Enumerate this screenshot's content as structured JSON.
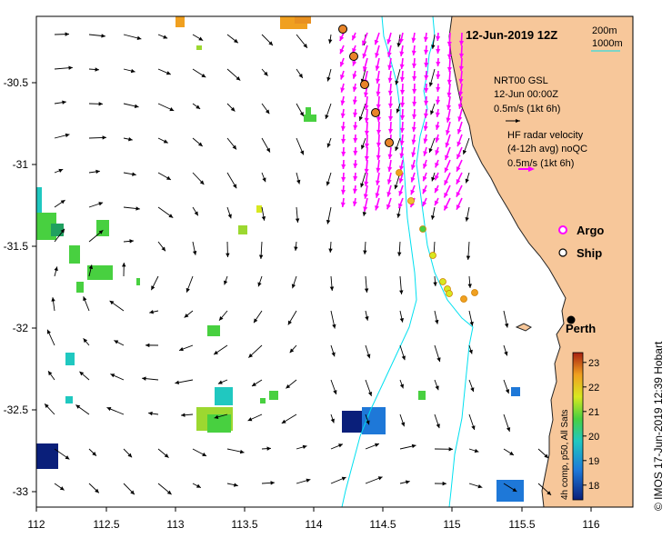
{
  "map": {
    "title": "12-Jun-2019 12Z",
    "depth_legend": {
      "contour_200": "200m",
      "contour_1000": "1000m"
    },
    "argo_label": "Argo",
    "ship_label": "Ship",
    "city_label": "Perth",
    "nrt_block": {
      "line1": "NRT00 GSL",
      "line2": "12-Jun 00:00Z",
      "line3": "0.5m/s (1kt 6h)"
    },
    "hf_block": {
      "line1": "HF radar velocity",
      "line2": "(4-12h avg) noQC",
      "line3": "0.5m/s (1kt 6h)"
    },
    "colorbar": {
      "title": "4h comp, p50, All Sats",
      "ticks": [
        "18",
        "19",
        "20",
        "21",
        "22",
        "23"
      ],
      "min": 17.4,
      "max": 23.4
    },
    "x_ticks": [
      "112",
      "112.5",
      "113",
      "113.5",
      "114",
      "114.5",
      "115",
      "115.5",
      "116"
    ],
    "y_ticks": [
      "-30.5",
      "-31",
      "-31.5",
      "-32",
      "-32.5",
      "-33"
    ],
    "credit": "© IMOS 17-Jun-2019 12:39 Hobart",
    "colors": {
      "land": "#f7c79a",
      "contour": "#00e0f0",
      "hf_arrow": "#ff00ff",
      "argo": "#ff00ff",
      "ship_fill": "#e8842a"
    }
  }
}
